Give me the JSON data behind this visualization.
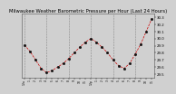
{
  "title": "Milwaukee Weather Barometric Pressure per Hour (Last 24 Hours)",
  "hours": [
    0,
    1,
    2,
    3,
    4,
    5,
    6,
    7,
    8,
    9,
    10,
    11,
    12,
    13,
    14,
    15,
    16,
    17,
    18,
    19,
    20,
    21,
    22,
    23
  ],
  "pressure": [
    29.91,
    29.82,
    29.7,
    29.58,
    29.52,
    29.55,
    29.6,
    29.65,
    29.72,
    29.8,
    29.88,
    29.95,
    30.0,
    29.95,
    29.88,
    29.8,
    29.7,
    29.62,
    29.58,
    29.65,
    29.78,
    29.92,
    30.1,
    30.28
  ],
  "ylim": [
    29.45,
    30.35
  ],
  "yticks": [
    29.5,
    29.6,
    29.7,
    29.8,
    29.9,
    30.0,
    30.1,
    30.2,
    30.3
  ],
  "ytick_labels": [
    "29.5",
    "29.6",
    "29.7",
    "29.8",
    "29.9",
    "30.0",
    "30.1",
    "30.2",
    "30.3"
  ],
  "line_color": "#cc0000",
  "marker_color": "#111111",
  "bg_color": "#d0d0d0",
  "plot_bg": "#d0d0d0",
  "grid_color": "#888888",
  "title_fontsize": 3.8,
  "tick_fontsize": 2.8,
  "linewidth": 0.5,
  "markersize": 1.0,
  "xtick_labels": [
    "12a",
    "1",
    "2",
    "3",
    "4",
    "5",
    "6",
    "7",
    "8",
    "9",
    "10",
    "11",
    "12p",
    "1",
    "2",
    "3",
    "4",
    "5",
    "6",
    "7",
    "8",
    "9",
    "10",
    "11"
  ]
}
